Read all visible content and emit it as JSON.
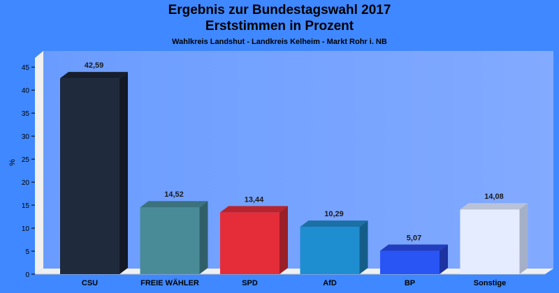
{
  "chart_data": {
    "type": "bar",
    "title": "Ergebnis zur Bundestagswahl 2017",
    "title2": "Erststimmen in Prozent",
    "subtitle": "Wahlkreis Landshut - Landkreis Kelheim - Markt Rohr i. NB",
    "ylabel": "%",
    "xlabel": "",
    "ylim": [
      0,
      47
    ],
    "yticks": [
      0,
      5,
      10,
      15,
      20,
      25,
      30,
      35,
      40,
      45
    ],
    "grid": false,
    "categories": [
      "CSU",
      "FREIE WÄHLER",
      "SPD",
      "AfD",
      "BP",
      "Sonstige"
    ],
    "values": [
      42.59,
      14.52,
      13.44,
      10.29,
      5.07,
      14.08
    ],
    "value_labels": [
      "42,59",
      "14,52",
      "13,44",
      "10,29",
      "5,07",
      "14,08"
    ],
    "colors": [
      "#1f2a3c",
      "#4a8b98",
      "#e52d3a",
      "#1f8ed0",
      "#2a55f5",
      "#e6ecff"
    ],
    "top_colors": [
      "#171f2d",
      "#3b727e",
      "#b8242e",
      "#1b70a5",
      "#223dbd",
      "#b8c2d8"
    ],
    "side_colors": [
      "#131a26",
      "#315f69",
      "#9a1f28",
      "#155d89",
      "#1c33a1",
      "#a5b0c8"
    ]
  }
}
